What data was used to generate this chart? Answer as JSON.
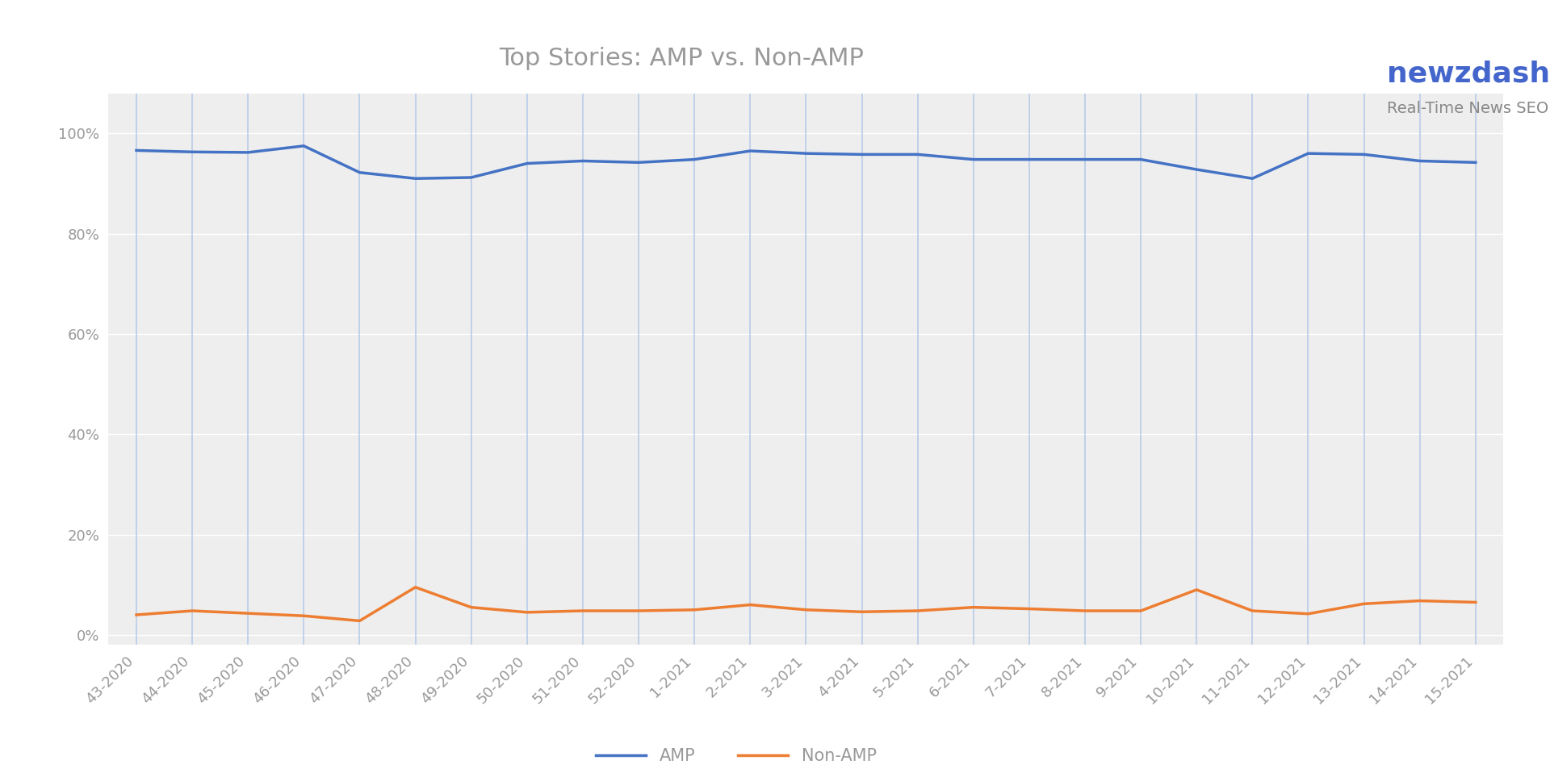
{
  "title": "Top Stories: AMP vs. Non-AMP",
  "title_color": "#999999",
  "title_fontsize": 22,
  "fig_bg_color": "#ffffff",
  "plot_bg_color": "#eeeeee",
  "categories": [
    "43-2020",
    "44-2020",
    "45-2020",
    "46-2020",
    "47-2020",
    "48-2020",
    "49-2020",
    "50-2020",
    "51-2020",
    "52-2020",
    "1-2021",
    "2-2021",
    "3-2021",
    "4-2021",
    "5-2021",
    "6-2021",
    "7-2021",
    "8-2021",
    "9-2021",
    "10-2021",
    "11-2021",
    "12-2021",
    "13-2021",
    "14-2021",
    "15-2021"
  ],
  "amp_values": [
    0.966,
    0.963,
    0.962,
    0.975,
    0.922,
    0.91,
    0.912,
    0.94,
    0.945,
    0.942,
    0.948,
    0.965,
    0.96,
    0.958,
    0.958,
    0.948,
    0.948,
    0.948,
    0.948,
    0.928,
    0.91,
    0.96,
    0.958,
    0.945,
    0.942
  ],
  "nonamp_values": [
    0.04,
    0.048,
    0.043,
    0.038,
    0.028,
    0.095,
    0.055,
    0.045,
    0.048,
    0.048,
    0.05,
    0.06,
    0.05,
    0.046,
    0.048,
    0.055,
    0.052,
    0.048,
    0.048,
    0.09,
    0.048,
    0.042,
    0.062,
    0.068,
    0.065
  ],
  "amp_color": "#4472c4",
  "nonamp_color": "#ed7d31",
  "amp_linewidth": 2.5,
  "nonamp_linewidth": 2.5,
  "ylim": [
    -0.02,
    1.08
  ],
  "yticks": [
    0.0,
    0.2,
    0.4,
    0.6,
    0.8,
    1.0
  ],
  "ytick_labels": [
    "0%",
    "20%",
    "40%",
    "60%",
    "80%",
    "100%"
  ],
  "legend_amp": "AMP",
  "legend_nonamp": "Non-AMP",
  "vgrid_color": "#b8cce8",
  "hgrid_color": "#ffffff",
  "vgrid_linewidth": 1.2,
  "hgrid_linewidth": 1.0,
  "tick_color": "#999999",
  "tick_fontsize": 13,
  "logo_text1": "newzdash",
  "logo_text2": "Real-Time News SEO",
  "logo_color1": "#4466cc",
  "logo_color2": "#888888"
}
